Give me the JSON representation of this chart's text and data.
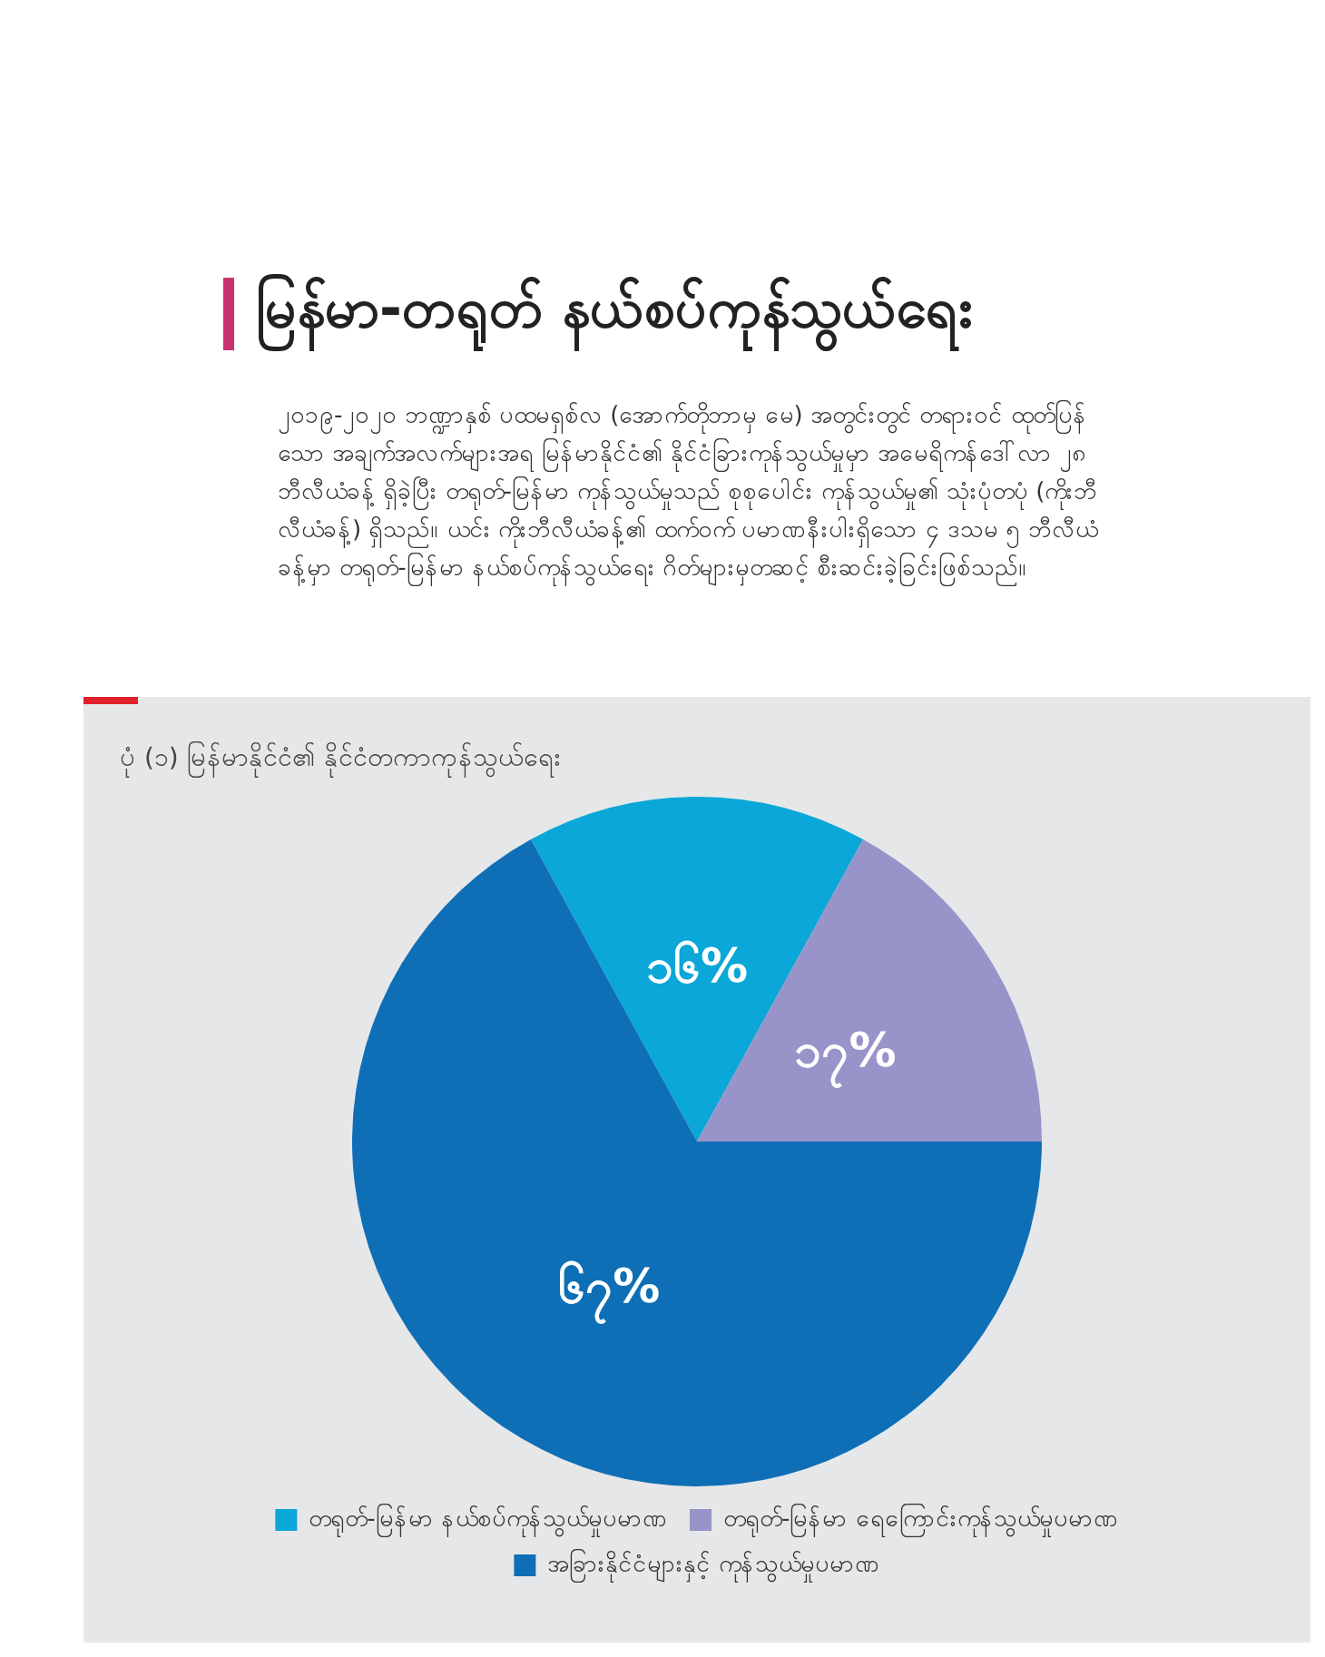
{
  "chart_data": {
    "type": "pie",
    "title": "မြန်မာ-တရုတ် နယ်စပ်ကုန်သွယ်ရေး",
    "subtitle": "၂၀၁၉-၂၀၂၀ ဘဏ္ဍာနှစ် ပထမရှစ်လ (အောက်တိုဘာမှ မေ) အတွင်းတွင် တရားဝင် ထုတ်ပြန်သော အချက်အလက်များအရ မြန်မာနိုင်ငံ၏ နိုင်ငံခြားကုန်သွယ်မှုမှာ အမေရိကန်ဒေါ်လာ ၂၈ ဘီလီယံခန့် ရှိခဲ့ပြီး တရုတ်-မြန်မာ ကုန်သွယ်မှုသည် စုစုပေါင်း ကုန်သွယ်မှု၏ သုံးပုံတပုံ (ကိုးဘီလီယံခန့်) ရှိသည်။ ယင်း ကိုးဘီလီယံခန့်၏ ထက်ဝက် ပမာဏနီးပါးရှိသော ၄ ဒသမ ၅ ဘီလီယံခန့်မှာ တရုတ်-မြန်မာ နယ်စပ်ကုန်သွယ်ရေး ဂိတ်များမှတဆင့် စီးဆင်းခဲ့ခြင်းဖြစ်သည်။",
    "annotations": [
      "ပုံ (၁) မြန်မာနိုင်ငံ၏ နိုင်ငံတကာကုန်သွယ်ရေး"
    ],
    "categories": [
      "တရုတ်-မြန်မာ နယ်စပ်ကုန်သွယ်မှုပမာဏ",
      "တရုတ်-မြန်မာ ရေကြောင်းကုန်သွယ်မှုပမာဏ",
      "အခြားနိုင်ငံများနှင့် ကုန်သွယ်မှုပမာဏ"
    ],
    "values": [
      16,
      17,
      67
    ],
    "value_labels": [
      "၁၆%",
      "၁၇%",
      "၆၇%"
    ],
    "colors": [
      "#0aa7d8",
      "#9894c9",
      "#0e6fb6"
    ],
    "legend": "bottom"
  }
}
